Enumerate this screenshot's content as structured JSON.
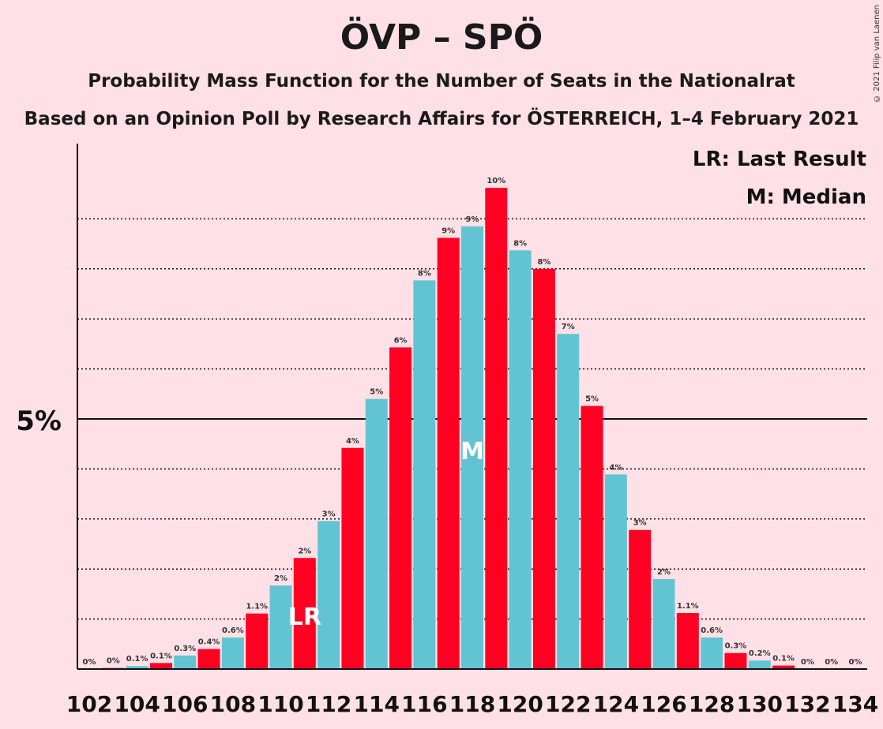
{
  "title": "ÖVP – SPÖ",
  "subtitle1": "Probability Mass Function for the Number of Seats in the Nationalrat",
  "subtitle2": "Based on an Opinion Poll by Research Affairs for ÖSTERREICH, 1–4 February 2021",
  "copyright": "© 2021 Filip van Laenen",
  "legend": {
    "last_result": "LR: Last Result",
    "median": "M: Median"
  },
  "colors": {
    "background": "#ffe0e6",
    "bar_even": "#62c4d2",
    "bar_odd": "#ff0022"
  },
  "chart_data": {
    "type": "bar",
    "categories": [
      102,
      103,
      104,
      105,
      106,
      107,
      108,
      109,
      110,
      111,
      112,
      113,
      114,
      115,
      116,
      117,
      118,
      119,
      120,
      121,
      122,
      123,
      124,
      125,
      126,
      127,
      128,
      129,
      130,
      131,
      132,
      133,
      134
    ],
    "values": [
      0,
      0.02,
      0.06,
      0.12,
      0.27,
      0.4,
      0.63,
      1.11,
      1.67,
      2.22,
      2.96,
      4.42,
      5.4,
      6.43,
      7.77,
      8.62,
      8.85,
      9.62,
      8.37,
      8.0,
      6.7,
      5.26,
      3.89,
      2.78,
      1.8,
      1.12,
      0.63,
      0.32,
      0.17,
      0.07,
      0,
      0,
      0
    ],
    "bar_labels": [
      "0%",
      "0%",
      "0.1%",
      "0.1%",
      "0.3%",
      "0.4%",
      "0.6%",
      "1.1%",
      "2%",
      "2%",
      "3%",
      "4%",
      "5%",
      "6%",
      "8%",
      "9%",
      "9%",
      "10%",
      "8%",
      "8%",
      "7%",
      "5%",
      "4%",
      "3%",
      "2%",
      "1.1%",
      "0.6%",
      "0.3%",
      "0.2%",
      "0.1%",
      "0%",
      "0%",
      "0%"
    ],
    "x_tick_labels": [
      "102",
      "104",
      "106",
      "108",
      "110",
      "112",
      "114",
      "116",
      "118",
      "120",
      "122",
      "124",
      "126",
      "128",
      "130",
      "132",
      "134"
    ],
    "y_tick_label": "5%",
    "y_reference": 5,
    "ylim": [
      0,
      10.5
    ],
    "gridlines": [
      1,
      2,
      3,
      4,
      6,
      7,
      8,
      9
    ],
    "last_result": {
      "seat": 111,
      "label": "LR"
    },
    "median": {
      "seat": 118,
      "label": "M"
    }
  }
}
